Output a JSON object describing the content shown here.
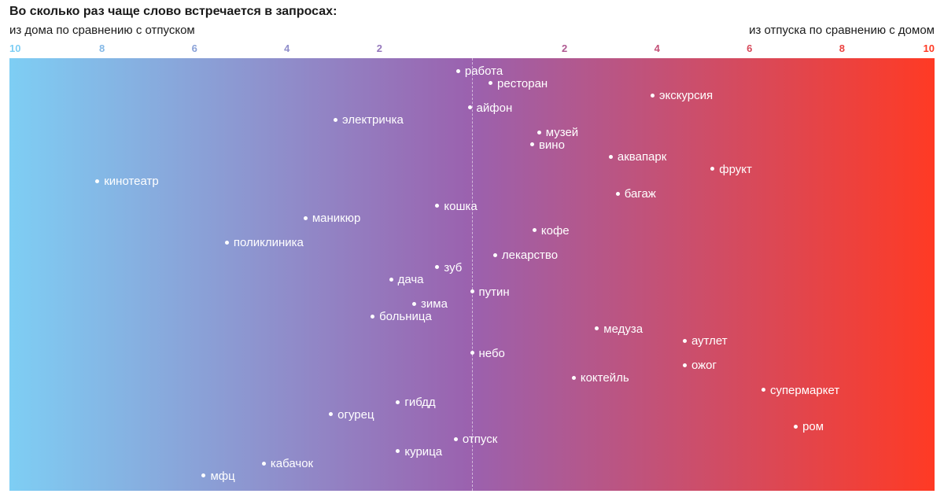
{
  "chart_data": {
    "type": "scatter",
    "title": "Во сколько раз чаще слово встречается в запросах:",
    "left_label": "из дома по сравнению с отпуском",
    "right_label": "из отпуска по сравнению с домом",
    "axis": {
      "ticks": [
        {
          "label": "10",
          "value": -10
        },
        {
          "label": "8",
          "value": -8
        },
        {
          "label": "6",
          "value": -6
        },
        {
          "label": "4",
          "value": -4
        },
        {
          "label": "2",
          "value": -2
        },
        {
          "label": "2",
          "value": 2
        },
        {
          "label": "4",
          "value": 4
        },
        {
          "label": "6",
          "value": 6
        },
        {
          "label": "8",
          "value": 8
        },
        {
          "label": "10",
          "value": 10
        }
      ],
      "xlim": [
        -10,
        10
      ],
      "center_value": 0,
      "scale": "signed ratio; 0 = one (equal frequency), negative = more often at home, positive = more often on vacation"
    },
    "colors": {
      "left": "#7ecef4",
      "mid": "#9b61ae",
      "right": "#ff3a24",
      "tick_left": "#7ecef4",
      "tick_right": "#ff3a24",
      "point": "#ffffff"
    },
    "points": [
      {
        "word": "работа",
        "x": -0.3
      },
      {
        "word": "ресторан",
        "x": 0.4
      },
      {
        "word": "экскурсия",
        "x": 3.9
      },
      {
        "word": "айфон",
        "x": -0.05
      },
      {
        "word": "электричка",
        "x": -2.95
      },
      {
        "word": "музей",
        "x": 1.45
      },
      {
        "word": "вино",
        "x": 1.3
      },
      {
        "word": "аквапарк",
        "x": 3.0
      },
      {
        "word": "фрукт",
        "x": 5.2
      },
      {
        "word": "кинотеатр",
        "x": -8.1
      },
      {
        "word": "багаж",
        "x": 3.15
      },
      {
        "word": "кошка",
        "x": -0.75
      },
      {
        "word": "маникюр",
        "x": -3.6
      },
      {
        "word": "кофе",
        "x": 1.35
      },
      {
        "word": "поликлиника",
        "x": -5.3
      },
      {
        "word": "лекарство",
        "x": 0.5
      },
      {
        "word": "зуб",
        "x": -0.75
      },
      {
        "word": "дача",
        "x": -1.75
      },
      {
        "word": "путин",
        "x": 0.0
      },
      {
        "word": "зима",
        "x": -1.25
      },
      {
        "word": "больница",
        "x": -2.15
      },
      {
        "word": "медуза",
        "x": 2.7
      },
      {
        "word": "аутлет",
        "x": 4.6
      },
      {
        "word": "небо",
        "x": 0.0
      },
      {
        "word": "ожог",
        "x": 4.6
      },
      {
        "word": "коктейль",
        "x": 2.2
      },
      {
        "word": "супермаркет",
        "x": 6.3
      },
      {
        "word": "гибдд",
        "x": -1.6
      },
      {
        "word": "огурец",
        "x": -3.05
      },
      {
        "word": "ром",
        "x": 7.0
      },
      {
        "word": "отпуск",
        "x": -0.35
      },
      {
        "word": "курица",
        "x": -1.6
      },
      {
        "word": "кабачок",
        "x": -4.5
      },
      {
        "word": "мфц",
        "x": -5.8
      }
    ]
  }
}
